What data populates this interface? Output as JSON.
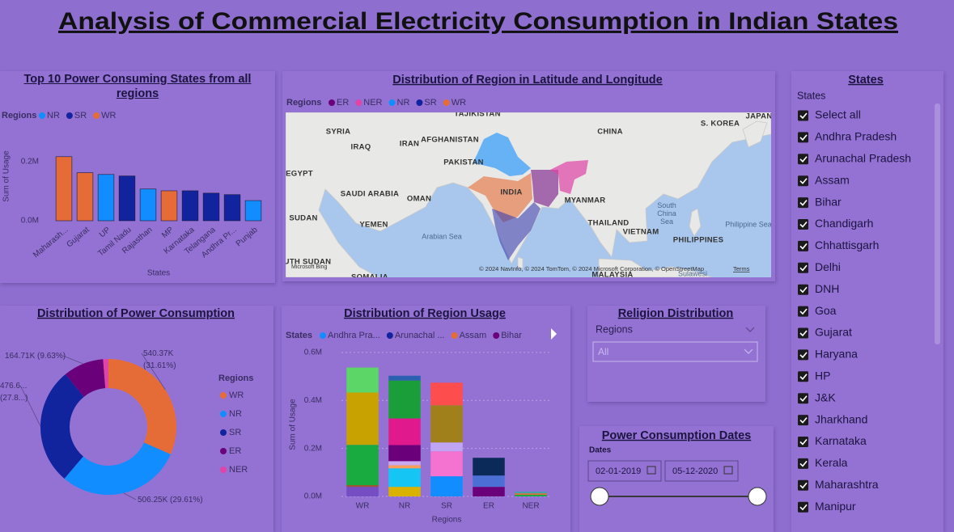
{
  "header": {
    "title": "Analysis of Commercial Electricity Consumption in Indian States"
  },
  "chart_data": [
    {
      "type": "bar",
      "title": "Top 10 Power Consuming States from all regions",
      "legend_title": "Regions",
      "legend": [
        {
          "name": "NR",
          "color": "#118dff"
        },
        {
          "name": "SR",
          "color": "#12239e"
        },
        {
          "name": "WR",
          "color": "#e66c37"
        }
      ],
      "categories": [
        "Maharash...",
        "Gujarat",
        "UP",
        "Tamil Nadu",
        "Rajasthan",
        "MP",
        "Karnataka",
        "Telangana",
        "Andhra Pr...",
        "Punjab"
      ],
      "values": [
        0.216,
        0.162,
        0.156,
        0.151,
        0.107,
        0.101,
        0.101,
        0.093,
        0.088,
        0.068
      ],
      "colors": [
        "#e66c37",
        "#e66c37",
        "#118dff",
        "#12239e",
        "#118dff",
        "#e66c37",
        "#12239e",
        "#12239e",
        "#12239e",
        "#118dff"
      ],
      "ylim": [
        0,
        0.24
      ],
      "yticks": [
        {
          "value": 0,
          "label": "0.0M"
        },
        {
          "value": 0.2,
          "label": "0.2M"
        }
      ],
      "x_label": "States",
      "y_label": "Sum of Usage",
      "grid": false
    },
    {
      "type": "pie",
      "title": "Distribution of Power Consumption",
      "legend_title": "Regions",
      "categories": [
        "WR",
        "NR",
        "SR",
        "ER",
        "NER"
      ],
      "values": [
        540.37,
        506.25,
        476.6,
        164.71,
        21.6
      ],
      "value_labels": [
        "540.37K (31.61%)",
        "506.25K (29.61%)",
        "476.6... (27.8...)",
        "164.71K (9.63%)",
        null
      ],
      "colors": [
        "#e66c37",
        "#118dff",
        "#12239e",
        "#6b007b",
        "#e044a7"
      ]
    },
    {
      "type": "stacked_bar",
      "title": "Distribution of Region Usage",
      "legend_title": "States",
      "legend": [
        {
          "name": "Andhra Pra...",
          "color": "#118dff"
        },
        {
          "name": "Arunachal ...",
          "color": "#12239e"
        },
        {
          "name": "Assam",
          "color": "#e66c37"
        },
        {
          "name": "Bihar",
          "color": "#6b007b"
        }
      ],
      "categories": [
        "WR",
        "NR",
        "SR",
        "ER",
        "NER"
      ],
      "stacks": [
        [
          {
            "value": 0.04,
            "color": "#744ec2"
          },
          {
            "value": 0.007,
            "color": "#a0522d"
          },
          {
            "value": 0.168,
            "color": "#1aab40"
          },
          {
            "value": 0.218,
            "color": "#c8a200"
          },
          {
            "value": 0.104,
            "color": "#5bd667"
          }
        ],
        [
          {
            "value": 0.04,
            "color": "#d9b300"
          },
          {
            "value": 0.077,
            "color": "#15c6f4"
          },
          {
            "value": 0.013,
            "color": "#fa9f5a"
          },
          {
            "value": 0.017,
            "color": "#c9a9f0"
          },
          {
            "value": 0.067,
            "color": "#6b007b"
          },
          {
            "value": 0.111,
            "color": "#e0198c"
          },
          {
            "value": 0.158,
            "color": "#1a9e3a"
          },
          {
            "value": 0.02,
            "color": "#2b5fb0"
          }
        ],
        [
          {
            "value": 0.084,
            "color": "#118dff"
          },
          {
            "value": 0.104,
            "color": "#f472d0"
          },
          {
            "value": 0.037,
            "color": "#c0a6f2"
          },
          {
            "value": 0.155,
            "color": "#a0801b"
          },
          {
            "value": 0.094,
            "color": "#fd4d4d"
          }
        ],
        [
          {
            "value": 0.04,
            "color": "#6b007b"
          },
          {
            "value": 0.047,
            "color": "#4c6fd6"
          },
          {
            "value": 0.074,
            "color": "#0b2a5a"
          }
        ],
        [
          {
            "value": 0.007,
            "color": "#1aab40"
          },
          {
            "value": 0.006,
            "color": "#e66c37"
          },
          {
            "value": 0.007,
            "color": "#41a4a8"
          }
        ]
      ],
      "ylim": [
        0,
        0.62
      ],
      "yticks": [
        {
          "value": 0,
          "label": "0.0M"
        },
        {
          "value": 0.2,
          "label": "0.2M"
        },
        {
          "value": 0.4,
          "label": "0.4M"
        },
        {
          "value": 0.6,
          "label": "0.6M"
        }
      ],
      "x_label": "Regions",
      "y_label": "Sum of Usage",
      "grid": true
    }
  ],
  "map": {
    "title": "Distribution of Region in Latitude and Longitude",
    "legend_title": "Regions",
    "legend": [
      {
        "name": "ER",
        "color": "#6b007b"
      },
      {
        "name": "NER",
        "color": "#e044a7"
      },
      {
        "name": "NR",
        "color": "#118dff"
      },
      {
        "name": "SR",
        "color": "#12239e"
      },
      {
        "name": "WR",
        "color": "#e66c37"
      }
    ],
    "labels": [
      "TAJIKISTAN",
      "SYRIA",
      "IRAQ",
      "IRAN",
      "AFGHANISTAN",
      "PAKISTAN",
      "CHINA",
      "S. KOREA",
      "JAPAN",
      "EGYPT",
      "SAUDI ARABIA",
      "OMAN",
      "INDIA",
      "MYANMAR",
      "THAILAND",
      "VIETNAM",
      "PHILIPPINES",
      "SUDAN",
      "YEMEN",
      "Arabian Sea",
      "South China Sea",
      "Philippine Sea",
      "UTH SUDAN",
      "SOMALIA",
      "MALAYSIA",
      "Sulawesi"
    ],
    "attribution": "© 2024 NavInfo, © 2024 TomTom, © 2024 Microsoft Corporation, © OpenStreetMap",
    "terms": "Terms",
    "brand": "Microsoft Bing"
  },
  "states_slicer": {
    "title": "States",
    "header": "States",
    "items": [
      "Select all",
      "Andhra Pradesh",
      "Arunachal Pradesh",
      "Assam",
      "Bihar",
      "Chandigarh",
      "Chhattisgarh",
      "Delhi",
      "DNH",
      "Goa",
      "Gujarat",
      "Haryana",
      "HP",
      "J&K",
      "Jharkhand",
      "Karnataka",
      "Kerala",
      "Maharashtra",
      "Manipur"
    ]
  },
  "religion_slicer": {
    "title": "Religion Distribution",
    "label": "Regions",
    "value": "All"
  },
  "date_slicer": {
    "title": "Power Consumption Dates",
    "label": "Dates",
    "start": "02-01-2019",
    "end": "05-12-2020"
  }
}
